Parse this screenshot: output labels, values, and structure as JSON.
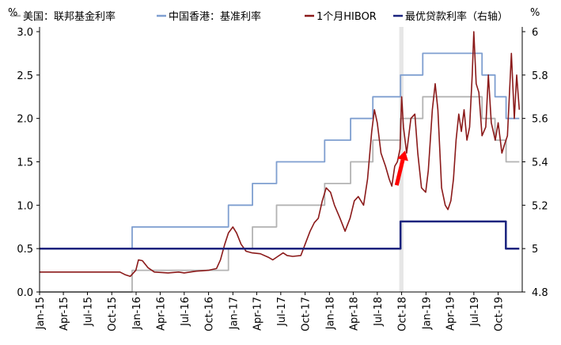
{
  "chart_data": {
    "type": "line",
    "title": "",
    "left_axis": {
      "unit": "%",
      "ylim": [
        0,
        3.0
      ],
      "ticks": [
        0.0,
        0.5,
        1.0,
        1.5,
        2.0,
        2.5,
        3.0
      ],
      "tick_labels": [
        "0.0",
        "0.5",
        "1.0",
        "1.5",
        "2.0",
        "2.5",
        "3.0"
      ]
    },
    "right_axis": {
      "unit": "%",
      "ylim": [
        4.8,
        6.0
      ],
      "ticks": [
        4.8,
        5.0,
        5.2,
        5.4,
        5.6,
        5.8,
        6.0
      ],
      "tick_labels": [
        "4.8",
        "5",
        "5.2",
        "5.4",
        "5.6",
        "5.8",
        "6"
      ]
    },
    "x_axis": {
      "min": "2015-01",
      "max": "2019-12",
      "tick_labels": [
        "Jan-15",
        "Apr-15",
        "Jul-15",
        "Oct-15",
        "Jan-16",
        "Apr-16",
        "Jul-16",
        "Oct-16",
        "Jan-17",
        "Apr-17",
        "Jul-17",
        "Oct-17",
        "Jan-18",
        "Apr-18",
        "Jul-18",
        "Oct-18",
        "Jan-19",
        "Apr-19",
        "Jul-19",
        "Oct-19"
      ],
      "tick_dates": [
        "2015-01",
        "2015-04",
        "2015-07",
        "2015-10",
        "2016-01",
        "2016-04",
        "2016-07",
        "2016-10",
        "2017-01",
        "2017-04",
        "2017-07",
        "2017-10",
        "2018-01",
        "2018-04",
        "2018-07",
        "2018-10",
        "2019-01",
        "2019-04",
        "2019-07",
        "2019-10"
      ]
    },
    "grid": false,
    "legend_position": "top",
    "highlight_band": {
      "from": "2018-09-22",
      "to": "2018-10-08",
      "color": "#e6e6e6"
    },
    "annotation_arrow": {
      "from": [
        "2018-09-12",
        1.23
      ],
      "to": [
        "2018-10-14",
        1.63
      ],
      "color": "#ff0000"
    },
    "series": [
      {
        "name": "美国：联邦基金利率",
        "axis": "left",
        "color": "#b3b3b3",
        "step": true,
        "points": [
          [
            "2015-01-01",
            0.0
          ],
          [
            "2015-12-17",
            0.25
          ],
          [
            "2016-12-15",
            0.5
          ],
          [
            "2017-03-16",
            0.75
          ],
          [
            "2017-06-15",
            1.0
          ],
          [
            "2017-12-14",
            1.25
          ],
          [
            "2018-03-22",
            1.5
          ],
          [
            "2018-06-14",
            1.75
          ],
          [
            "2018-09-27",
            2.0
          ],
          [
            "2018-12-20",
            2.25
          ],
          [
            "2019-08-01",
            2.0
          ],
          [
            "2019-09-19",
            1.75
          ],
          [
            "2019-10-31",
            1.5
          ],
          [
            "2019-12-20",
            1.5
          ]
        ]
      },
      {
        "name": "中国香港：基准利率",
        "axis": "left",
        "color": "#7f9fd0",
        "step": true,
        "points": [
          [
            "2015-01-01",
            0.5
          ],
          [
            "2015-12-17",
            0.75
          ],
          [
            "2016-12-15",
            1.0
          ],
          [
            "2017-03-16",
            1.25
          ],
          [
            "2017-06-15",
            1.5
          ],
          [
            "2017-12-14",
            1.75
          ],
          [
            "2018-03-22",
            2.0
          ],
          [
            "2018-06-14",
            2.25
          ],
          [
            "2018-09-27",
            2.5
          ],
          [
            "2018-12-20",
            2.75
          ],
          [
            "2019-08-01",
            2.5
          ],
          [
            "2019-09-19",
            2.25
          ],
          [
            "2019-10-31",
            2.0
          ],
          [
            "2019-12-20",
            2.0
          ]
        ]
      },
      {
        "name": "1个月HIBOR",
        "axis": "left",
        "color": "#8b1a1a",
        "step": false,
        "points": [
          [
            "2015-01-01",
            0.23
          ],
          [
            "2015-03-01",
            0.23
          ],
          [
            "2015-06-01",
            0.23
          ],
          [
            "2015-09-01",
            0.23
          ],
          [
            "2015-11-01",
            0.23
          ],
          [
            "2015-11-20",
            0.2
          ],
          [
            "2015-12-10",
            0.18
          ],
          [
            "2015-12-31",
            0.25
          ],
          [
            "2016-01-10",
            0.37
          ],
          [
            "2016-01-25",
            0.36
          ],
          [
            "2016-02-15",
            0.28
          ],
          [
            "2016-03-10",
            0.23
          ],
          [
            "2016-05-01",
            0.22
          ],
          [
            "2016-06-10",
            0.23
          ],
          [
            "2016-07-01",
            0.22
          ],
          [
            "2016-08-15",
            0.24
          ],
          [
            "2016-09-30",
            0.25
          ],
          [
            "2016-10-31",
            0.27
          ],
          [
            "2016-11-15",
            0.37
          ],
          [
            "2016-12-01",
            0.55
          ],
          [
            "2016-12-15",
            0.68
          ],
          [
            "2017-01-01",
            0.75
          ],
          [
            "2017-01-15",
            0.68
          ],
          [
            "2017-02-01",
            0.55
          ],
          [
            "2017-02-20",
            0.47
          ],
          [
            "2017-03-15",
            0.45
          ],
          [
            "2017-04-15",
            0.44
          ],
          [
            "2017-05-15",
            0.4
          ],
          [
            "2017-06-01",
            0.37
          ],
          [
            "2017-06-20",
            0.41
          ],
          [
            "2017-07-10",
            0.45
          ],
          [
            "2017-07-25",
            0.42
          ],
          [
            "2017-08-15",
            0.41
          ],
          [
            "2017-09-15",
            0.42
          ],
          [
            "2017-10-01",
            0.55
          ],
          [
            "2017-10-20",
            0.7
          ],
          [
            "2017-11-05",
            0.8
          ],
          [
            "2017-11-20",
            0.85
          ],
          [
            "2017-12-05",
            1.05
          ],
          [
            "2017-12-20",
            1.2
          ],
          [
            "2018-01-05",
            1.15
          ],
          [
            "2018-01-20",
            1.0
          ],
          [
            "2018-02-10",
            0.85
          ],
          [
            "2018-03-01",
            0.7
          ],
          [
            "2018-03-20",
            0.85
          ],
          [
            "2018-04-05",
            1.05
          ],
          [
            "2018-04-20",
            1.1
          ],
          [
            "2018-05-10",
            1.0
          ],
          [
            "2018-05-25",
            1.3
          ],
          [
            "2018-06-10",
            1.85
          ],
          [
            "2018-06-20",
            2.1
          ],
          [
            "2018-07-01",
            1.95
          ],
          [
            "2018-07-15",
            1.6
          ],
          [
            "2018-08-01",
            1.45
          ],
          [
            "2018-08-15",
            1.3
          ],
          [
            "2018-08-25",
            1.22
          ],
          [
            "2018-09-05",
            1.45
          ],
          [
            "2018-09-15",
            1.5
          ],
          [
            "2018-09-25",
            1.65
          ],
          [
            "2018-10-01",
            2.25
          ],
          [
            "2018-10-08",
            1.9
          ],
          [
            "2018-10-20",
            1.6
          ],
          [
            "2018-11-05",
            2.0
          ],
          [
            "2018-11-20",
            2.05
          ],
          [
            "2018-12-01",
            1.6
          ],
          [
            "2018-12-15",
            1.2
          ],
          [
            "2018-12-31",
            1.15
          ],
          [
            "2019-01-10",
            1.4
          ],
          [
            "2019-01-25",
            2.1
          ],
          [
            "2019-02-05",
            2.4
          ],
          [
            "2019-02-15",
            2.1
          ],
          [
            "2019-03-01",
            1.2
          ],
          [
            "2019-03-15",
            1.0
          ],
          [
            "2019-03-25",
            0.95
          ],
          [
            "2019-04-05",
            1.05
          ],
          [
            "2019-04-15",
            1.3
          ],
          [
            "2019-04-25",
            1.75
          ],
          [
            "2019-05-05",
            2.05
          ],
          [
            "2019-05-15",
            1.85
          ],
          [
            "2019-05-25",
            2.1
          ],
          [
            "2019-06-05",
            1.75
          ],
          [
            "2019-06-15",
            1.9
          ],
          [
            "2019-06-25",
            2.5
          ],
          [
            "2019-07-01",
            3.0
          ],
          [
            "2019-07-10",
            2.4
          ],
          [
            "2019-07-20",
            2.3
          ],
          [
            "2019-08-01",
            1.8
          ],
          [
            "2019-08-15",
            1.9
          ],
          [
            "2019-08-25",
            2.5
          ],
          [
            "2019-09-05",
            1.95
          ],
          [
            "2019-09-20",
            1.75
          ],
          [
            "2019-10-01",
            1.95
          ],
          [
            "2019-10-15",
            1.6
          ],
          [
            "2019-10-25",
            1.7
          ],
          [
            "2019-11-05",
            1.8
          ],
          [
            "2019-11-20",
            2.75
          ],
          [
            "2019-12-01",
            2.0
          ],
          [
            "2019-12-10",
            2.5
          ],
          [
            "2019-12-20",
            2.1
          ]
        ]
      },
      {
        "name": "最优贷款利率（右轴）",
        "axis": "right",
        "color": "#1a237e",
        "step": true,
        "points": [
          [
            "2015-01-01",
            5.0
          ],
          [
            "2018-09-27",
            5.125
          ],
          [
            "2019-10-30",
            5.0
          ],
          [
            "2019-12-20",
            5.0
          ]
        ]
      }
    ]
  }
}
